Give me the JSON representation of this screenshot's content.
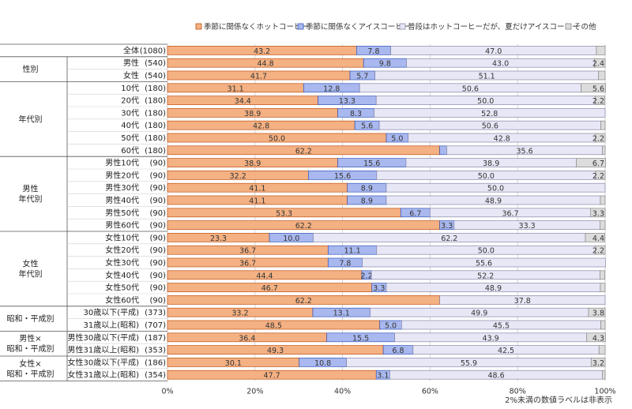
{
  "chart_data": {
    "type": "bar",
    "orientation": "horizontal",
    "stacked": true,
    "x_ticks": [
      "0%",
      "20%",
      "40%",
      "60%",
      "80%",
      "100%"
    ],
    "xlim": [
      0,
      100
    ],
    "grid": true,
    "legend_position": "top",
    "note": "2%未満の数値ラベルは非表示",
    "series": [
      {
        "name": "季節に関係なくホットコーヒー",
        "color": "#f4b183",
        "border": "#c05010"
      },
      {
        "name": "季節に関係なくアイスコーヒー",
        "color": "#a9b8ee",
        "border": "#3355bb"
      },
      {
        "name": "普段はホットコーヒーだが、夏だけアイスコーヒー",
        "color": "#e7e7f6",
        "border": "#8888aa"
      },
      {
        "name": "その他",
        "color": "#dcdcdc",
        "border": "#888888"
      }
    ],
    "groups": [
      {
        "label": "",
        "rows": [
          {
            "name": "全体",
            "n": "(1080)",
            "values": [
              43.2,
              7.8,
              47.0,
              2.0
            ],
            "labels": [
              "43.2",
              "7.8",
              "47.0",
              ""
            ]
          }
        ]
      },
      {
        "label": "性別",
        "rows": [
          {
            "name": "男性",
            "n": "(540)",
            "values": [
              44.8,
              9.8,
              43.0,
              2.4
            ],
            "labels": [
              "44.8",
              "9.8",
              "43.0",
              "2.4"
            ]
          },
          {
            "name": "女性",
            "n": "(540)",
            "values": [
              41.7,
              5.7,
              51.1,
              1.5
            ],
            "labels": [
              "41.7",
              "5.7",
              "51.1",
              ""
            ]
          }
        ]
      },
      {
        "label": "年代別",
        "rows": [
          {
            "name": "10代",
            "n": "(180)",
            "values": [
              31.1,
              12.8,
              50.6,
              5.6
            ],
            "labels": [
              "31.1",
              "12.8",
              "50.6",
              "5.6"
            ]
          },
          {
            "name": "20代",
            "n": "(180)",
            "values": [
              34.4,
              13.3,
              50.0,
              2.2
            ],
            "labels": [
              "34.4",
              "13.3",
              "50.0",
              "2.2"
            ]
          },
          {
            "name": "30代",
            "n": "(180)",
            "values": [
              38.9,
              8.3,
              52.8,
              0.0
            ],
            "labels": [
              "38.9",
              "8.3",
              "52.8",
              ""
            ]
          },
          {
            "name": "40代",
            "n": "(180)",
            "values": [
              42.8,
              5.6,
              50.6,
              1.0
            ],
            "labels": [
              "42.8",
              "5.6",
              "50.6",
              ""
            ]
          },
          {
            "name": "50代",
            "n": "(180)",
            "values": [
              50.0,
              5.0,
              42.8,
              2.2
            ],
            "labels": [
              "50.0",
              "5.0",
              "42.8",
              "2.2"
            ]
          },
          {
            "name": "60代",
            "n": "(180)",
            "values": [
              62.2,
              1.6,
              35.6,
              0.6
            ],
            "labels": [
              "62.2",
              "",
              "35.6",
              ""
            ]
          }
        ]
      },
      {
        "label": "男性\n年代別",
        "rows": [
          {
            "name": "男性10代",
            "n": "(90)",
            "values": [
              38.9,
              15.6,
              38.9,
              6.7
            ],
            "labels": [
              "38.9",
              "15.6",
              "38.9",
              "6.7"
            ]
          },
          {
            "name": "男性20代",
            "n": "(90)",
            "values": [
              32.2,
              15.6,
              50.0,
              2.2
            ],
            "labels": [
              "32.2",
              "15.6",
              "50.0",
              "2.2"
            ]
          },
          {
            "name": "男性30代",
            "n": "(90)",
            "values": [
              41.1,
              8.9,
              50.0,
              0.0
            ],
            "labels": [
              "41.1",
              "8.9",
              "50.0",
              ""
            ]
          },
          {
            "name": "男性40代",
            "n": "(90)",
            "values": [
              41.1,
              8.9,
              48.9,
              1.1
            ],
            "labels": [
              "41.1",
              "8.9",
              "48.9",
              ""
            ]
          },
          {
            "name": "男性50代",
            "n": "(90)",
            "values": [
              53.3,
              6.7,
              36.7,
              3.3
            ],
            "labels": [
              "53.3",
              "6.7",
              "36.7",
              "3.3"
            ]
          },
          {
            "name": "男性60代",
            "n": "(90)",
            "values": [
              62.2,
              3.3,
              33.3,
              1.2
            ],
            "labels": [
              "62.2",
              "3.3",
              "33.3",
              ""
            ]
          }
        ]
      },
      {
        "label": "女性\n年代別",
        "rows": [
          {
            "name": "女性10代",
            "n": "(90)",
            "values": [
              23.3,
              10.0,
              62.2,
              4.4
            ],
            "labels": [
              "23.3",
              "10.0",
              "62.2",
              "4.4"
            ]
          },
          {
            "name": "女性20代",
            "n": "(90)",
            "values": [
              36.7,
              11.1,
              50.0,
              2.2
            ],
            "labels": [
              "36.7",
              "11.1",
              "50.0",
              "2.2"
            ]
          },
          {
            "name": "女性30代",
            "n": "(90)",
            "values": [
              36.7,
              7.8,
              55.6,
              0.0
            ],
            "labels": [
              "36.7",
              "7.8",
              "55.6",
              ""
            ]
          },
          {
            "name": "女性40代",
            "n": "(90)",
            "values": [
              44.4,
              2.2,
              52.2,
              1.1
            ],
            "labels": [
              "44.4",
              "2.2",
              "52.2",
              ""
            ]
          },
          {
            "name": "女性50代",
            "n": "(90)",
            "values": [
              46.7,
              3.3,
              48.9,
              1.1
            ],
            "labels": [
              "46.7",
              "3.3",
              "48.9",
              ""
            ]
          },
          {
            "name": "女性60代",
            "n": "(90)",
            "values": [
              62.2,
              0.0,
              37.8,
              0.0
            ],
            "labels": [
              "62.2",
              "",
              "37.8",
              ""
            ]
          }
        ]
      },
      {
        "label": "昭和・平成別",
        "rows": [
          {
            "name": "30歳以下(平成)",
            "n": "(373)",
            "values": [
              33.2,
              13.1,
              49.9,
              3.8
            ],
            "labels": [
              "33.2",
              "13.1",
              "49.9",
              "3.8"
            ]
          },
          {
            "name": "31歳以上(昭和)",
            "n": "(707)",
            "values": [
              48.5,
              5.0,
              45.5,
              1.0
            ],
            "labels": [
              "48.5",
              "5.0",
              "45.5",
              ""
            ]
          }
        ]
      },
      {
        "label": "男性×\n昭和・平成別",
        "rows": [
          {
            "name": "男性30歳以下(平成)",
            "n": "(187)",
            "values": [
              36.4,
              15.5,
              43.9,
              4.3
            ],
            "labels": [
              "36.4",
              "15.5",
              "43.9",
              "4.3"
            ]
          },
          {
            "name": "男性31歳以上(昭和)",
            "n": "(353)",
            "values": [
              49.3,
              6.8,
              42.5,
              1.4
            ],
            "labels": [
              "49.3",
              "6.8",
              "42.5",
              ""
            ]
          }
        ]
      },
      {
        "label": "女性×\n昭和・平成別",
        "rows": [
          {
            "name": "女性30歳以下(平成)",
            "n": "(186)",
            "values": [
              30.1,
              10.8,
              55.9,
              3.2
            ],
            "labels": [
              "30.1",
              "10.8",
              "55.9",
              "3.2"
            ]
          },
          {
            "name": "女性31歳以上(昭和)",
            "n": "(354)",
            "values": [
              47.7,
              3.1,
              48.6,
              0.6
            ],
            "labels": [
              "47.7",
              "3.1",
              "48.6",
              ""
            ]
          }
        ]
      }
    ]
  }
}
